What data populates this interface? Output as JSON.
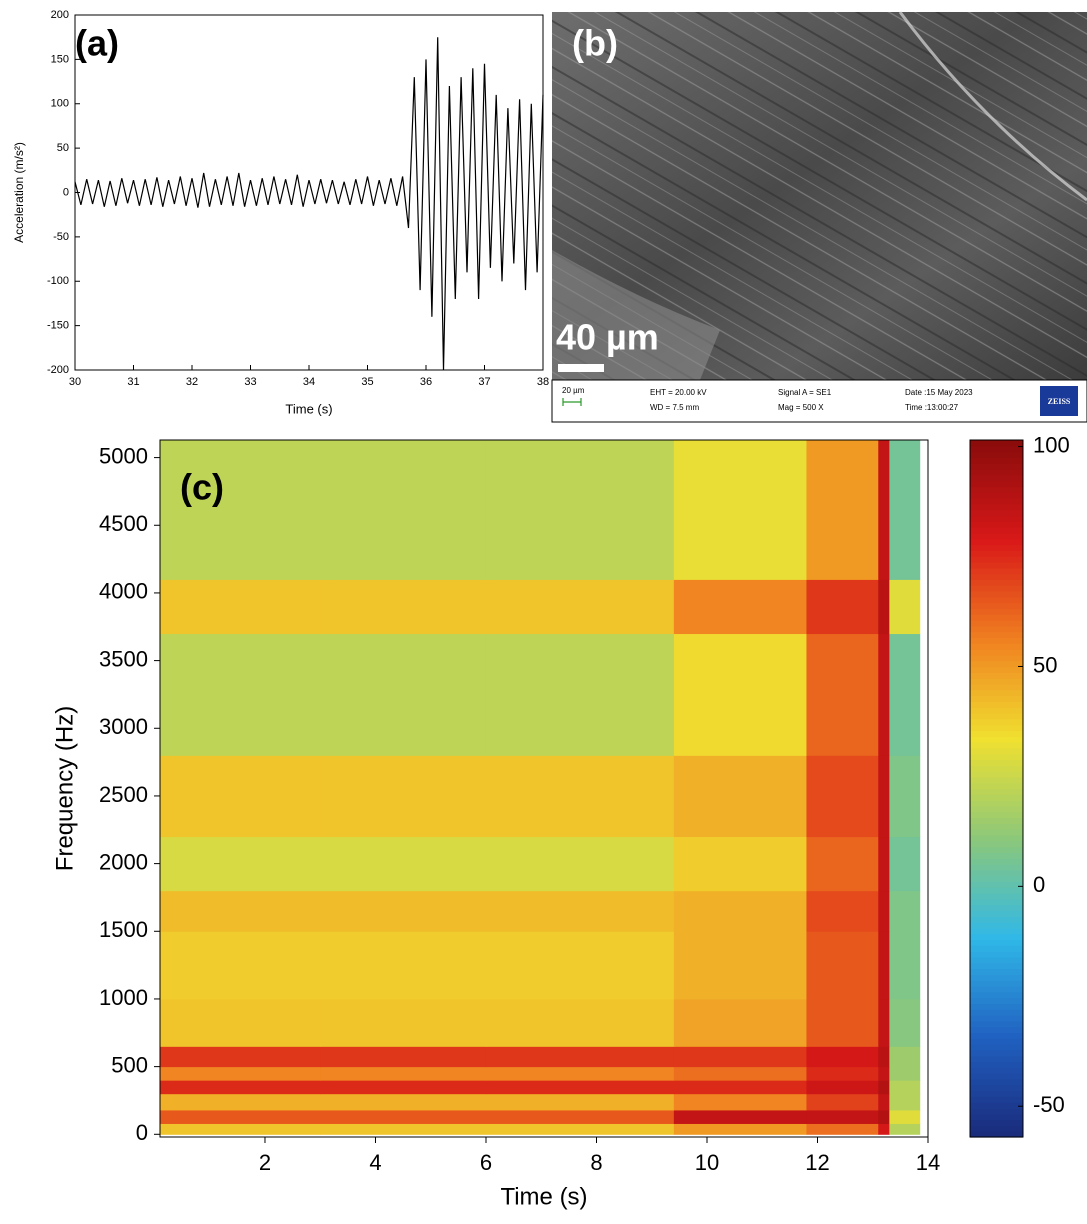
{
  "chart_data": [
    {
      "type": "line",
      "label": "(a)",
      "xlabel": "Time (s)",
      "ylabel": "Acceleration (m/s²)",
      "color": "#000000",
      "x": [
        30.0,
        30.1,
        30.2,
        30.3,
        30.4,
        30.5,
        30.6,
        30.7,
        30.8,
        30.9,
        31.0,
        31.1,
        31.2,
        31.3,
        31.4,
        31.5,
        31.6,
        31.7,
        31.8,
        31.9,
        32.0,
        32.1,
        32.2,
        32.3,
        32.4,
        32.5,
        32.6,
        32.7,
        32.8,
        32.9,
        33.0,
        33.1,
        33.2,
        33.3,
        33.4,
        33.5,
        33.6,
        33.7,
        33.8,
        33.9,
        34.0,
        34.1,
        34.2,
        34.3,
        34.4,
        34.5,
        34.6,
        34.7,
        34.8,
        34.9,
        35.0,
        35.1,
        35.2,
        35.3,
        35.4,
        35.5,
        35.6,
        35.7,
        35.8,
        35.9,
        36.0,
        36.1,
        36.2,
        36.3,
        36.4,
        36.5,
        36.6,
        36.7,
        36.8,
        36.9,
        37.0,
        37.1,
        37.2,
        37.3,
        37.4,
        37.5,
        37.6,
        37.7,
        37.8,
        37.9,
        38.0
      ],
      "values": [
        12,
        -14,
        15,
        -13,
        14,
        -16,
        13,
        -15,
        16,
        -12,
        14,
        -15,
        15,
        -14,
        17,
        -16,
        14,
        -13,
        18,
        -15,
        16,
        -17,
        22,
        -16,
        15,
        -14,
        18,
        -15,
        22,
        -16,
        14,
        -15,
        16,
        -14,
        18,
        -13,
        15,
        -14,
        20,
        -16,
        14,
        -13,
        15,
        -12,
        14,
        -13,
        12,
        -14,
        15,
        -13,
        18,
        -15,
        14,
        -13,
        16,
        -15,
        18,
        -40,
        130,
        -110,
        150,
        -140,
        175,
        -200,
        120,
        -120,
        130,
        -90,
        140,
        -120,
        145,
        -85,
        110,
        -100,
        95,
        -80,
        105,
        -110,
        100,
        -90,
        110
      ],
      "xlim": [
        30,
        38
      ],
      "xticks": [
        30,
        31,
        32,
        33,
        34,
        35,
        36,
        37,
        38
      ],
      "ylim": [
        -200,
        200
      ],
      "yticks": [
        -200,
        -150,
        -100,
        -50,
        0,
        50,
        100,
        150,
        200
      ]
    },
    {
      "type": "heatmap",
      "label": "(c)",
      "xlabel": "Time (s)",
      "ylabel": "Frequency (Hz)",
      "x_edges": [
        0.1,
        3,
        6,
        9.4,
        11.8,
        13.1,
        13.3,
        13.85
      ],
      "y_edges": [
        0,
        80,
        180,
        300,
        400,
        500,
        650,
        1000,
        1500,
        1800,
        2200,
        2800,
        3700,
        4100,
        5130
      ],
      "z": [
        [
          40,
          40,
          40,
          50,
          60,
          80,
          20
        ],
        [
          65,
          65,
          65,
          85,
          85,
          90,
          30
        ],
        [
          45,
          45,
          45,
          55,
          70,
          85,
          20
        ],
        [
          75,
          75,
          75,
          75,
          82,
          90,
          20
        ],
        [
          55,
          55,
          55,
          60,
          75,
          85,
          15
        ],
        [
          72,
          72,
          72,
          72,
          80,
          88,
          15
        ],
        [
          40,
          40,
          40,
          48,
          65,
          85,
          10
        ],
        [
          38,
          38,
          38,
          45,
          65,
          85,
          8
        ],
        [
          42,
          42,
          42,
          45,
          68,
          85,
          8
        ],
        [
          28,
          28,
          28,
          38,
          62,
          85,
          5
        ],
        [
          40,
          40,
          40,
          45,
          68,
          85,
          8
        ],
        [
          22,
          22,
          22,
          35,
          62,
          85,
          5
        ],
        [
          40,
          40,
          40,
          55,
          72,
          88,
          30
        ],
        [
          22,
          22,
          22,
          32,
          50,
          85,
          5
        ]
      ],
      "xlim": [
        0.1,
        14
      ],
      "xticks": [
        2,
        4,
        6,
        8,
        10,
        12,
        14
      ],
      "ylim": [
        -20,
        5130
      ],
      "yticks": [
        0,
        500,
        1000,
        1500,
        2000,
        2500,
        3000,
        3500,
        4000,
        4500,
        5000
      ],
      "clim": [
        -57,
        101.5
      ],
      "cticks": [
        -50,
        0,
        50,
        100
      ],
      "colormap": [
        "#1a2a7a",
        "#2060c0",
        "#30b8e8",
        "#8cc87a",
        "#f0e030",
        "#f08020",
        "#d81818",
        "#8a0c0c"
      ]
    }
  ],
  "sem_image": {
    "label": "(b)",
    "scale_bar": "40 µm",
    "small_scale": "20 µm",
    "eht": "EHT = 20.00 kV",
    "wd": "WD =  7.5 mm",
    "signal": "Signal A = SE1",
    "mag": "Mag =  500 X",
    "date": "Date :15 May 2023",
    "time": "Time :13:00:27",
    "brand": "ZEISS"
  }
}
